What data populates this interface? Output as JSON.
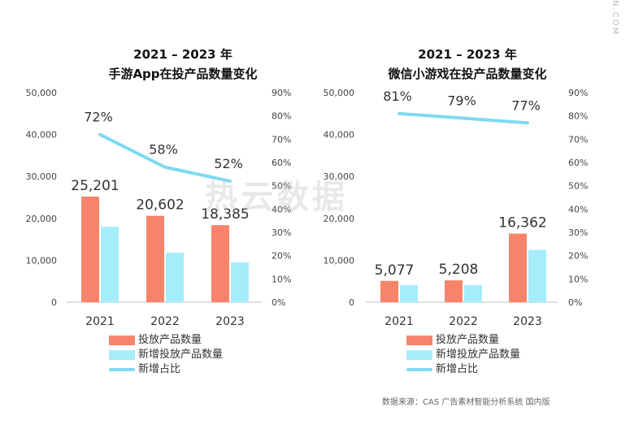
{
  "chart_data": [
    {
      "type": "bar",
      "title_line1": "2021 – 2023 年",
      "title_line2": "手游App在投产品数量变化",
      "categories": [
        "2021",
        "2022",
        "2023"
      ],
      "series": [
        {
          "name": "投放产品数量",
          "type": "bar",
          "values": [
            25201,
            20602,
            18385
          ],
          "color": "#F7846A"
        },
        {
          "name": "新增投放产品数量",
          "type": "bar",
          "values": [
            18000,
            11800,
            9500
          ],
          "color": "#A6EDFB"
        },
        {
          "name": "新增占比",
          "type": "line",
          "axis": "right",
          "values": [
            72,
            58,
            52
          ],
          "color": "#7ED9F1"
        }
      ],
      "bar_labels": [
        "25,201",
        "20,602",
        "18,385"
      ],
      "line_labels": [
        "72%",
        "58%",
        "52%"
      ],
      "y_left": {
        "ylim": [
          0,
          50000
        ],
        "ticks": [
          "0",
          "10,000",
          "20,000",
          "30,000",
          "40,000",
          "50,000"
        ]
      },
      "y_right": {
        "ylim": [
          0,
          90
        ],
        "ticks": [
          "0%",
          "10%",
          "20%",
          "30%",
          "40%",
          "50%",
          "60%",
          "70%",
          "80%",
          "90%"
        ]
      },
      "grid": false,
      "legend_position": "bottom"
    },
    {
      "type": "bar",
      "title_line1": "2021 – 2023 年",
      "title_line2": "微信小游戏在投产品数量变化",
      "categories": [
        "2021",
        "2022",
        "2023"
      ],
      "series": [
        {
          "name": "投放产品数量",
          "type": "bar",
          "values": [
            5077,
            5208,
            16362
          ],
          "color": "#F7846A"
        },
        {
          "name": "新增投放产品数量",
          "type": "bar",
          "values": [
            4100,
            4100,
            12500
          ],
          "color": "#A6EDFB"
        },
        {
          "name": "新增占比",
          "type": "line",
          "axis": "right",
          "values": [
            81,
            79,
            77
          ],
          "color": "#7ED9F1"
        }
      ],
      "bar_labels": [
        "5,077",
        "5,208",
        "16,362"
      ],
      "line_labels": [
        "81%",
        "79%",
        "77%"
      ],
      "y_left": {
        "ylim": [
          0,
          50000
        ],
        "ticks": [
          "0",
          "10,000",
          "20,000",
          "30,000",
          "40,000",
          "50,000"
        ]
      },
      "y_right": {
        "ylim": [
          0,
          90
        ],
        "ticks": [
          "0%",
          "10%",
          "20%",
          "30%",
          "40%",
          "50%",
          "60%",
          "70%",
          "80%",
          "90%"
        ]
      },
      "grid": false,
      "legend_position": "bottom"
    }
  ],
  "legend": [
    "投放产品数量",
    "新增投放产品数量",
    "新增占比"
  ],
  "watermark": "热云数据",
  "side_text": "N.COM",
  "source": "数据来源：CAS 广告素材智能分析系统 国内版"
}
